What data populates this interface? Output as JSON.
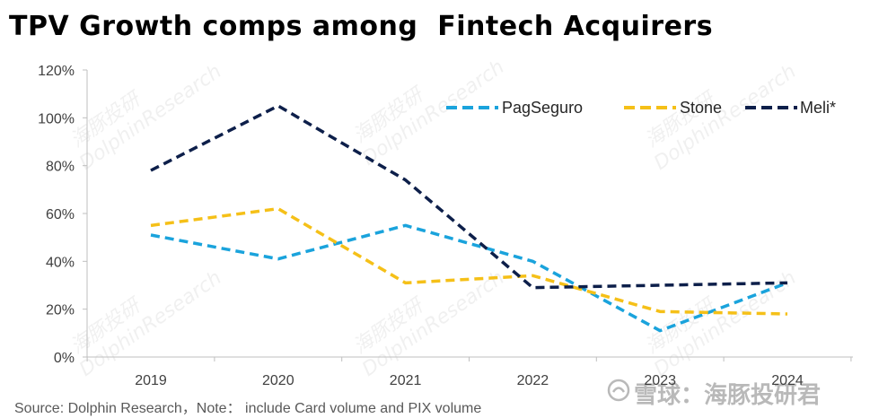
{
  "title": "TPV Growth comps among  Fintech Acquirers",
  "source": "Source: Dolphin Research，Note： include Card volume and PIX volume",
  "watermark": "DolphinResearch",
  "watermark_cn": "海豚投研",
  "brand": "雪球：海豚投研君",
  "chart_data": {
    "type": "line",
    "title": "TPV Growth comps among  Fintech Acquirers",
    "xlabel": "",
    "ylabel": "",
    "categories": [
      "2019",
      "2020",
      "2021",
      "2022",
      "2023",
      "2024"
    ],
    "ylim": [
      0,
      120
    ],
    "yticks": [
      0,
      20,
      40,
      60,
      80,
      100,
      120
    ],
    "ytick_format": "%",
    "ytick_labels": [
      "0%",
      "20%",
      "40%",
      "60%",
      "80%",
      "100%",
      "120%"
    ],
    "grid": false,
    "legend_position": "top-right",
    "series": [
      {
        "name": "PagSeguro",
        "values": [
          51,
          41,
          55,
          40,
          11,
          31
        ],
        "color": "#1aa3dc",
        "dash": "dashed"
      },
      {
        "name": "Stone",
        "values": [
          55,
          62,
          31,
          34,
          19,
          18
        ],
        "color": "#f5c018",
        "dash": "dashed"
      },
      {
        "name": "Meli*",
        "values": [
          78,
          105,
          74,
          29,
          30,
          31
        ],
        "color": "#0d1f4a",
        "dash": "dashed"
      }
    ]
  }
}
